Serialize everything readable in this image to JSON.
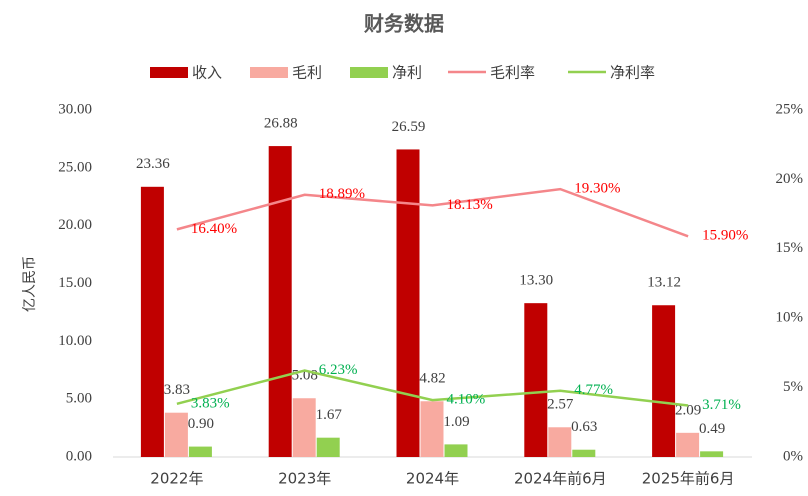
{
  "chart_data": {
    "type": "bar-line",
    "title": "财务数据",
    "y_label": "亿人民币",
    "categories": [
      "2022年",
      "2023年",
      "2024年",
      "2024年前6月",
      "2025年前6月"
    ],
    "series": [
      {
        "name": "收入",
        "kind": "bar",
        "color": "#c00000",
        "values": [
          23.36,
          26.88,
          26.59,
          13.3,
          13.12
        ],
        "value_labels": [
          "23.36",
          "26.88",
          "26.59",
          "13.30",
          "13.12"
        ]
      },
      {
        "name": "毛利",
        "kind": "bar",
        "color": "#f8aaa0",
        "values": [
          3.83,
          5.08,
          4.82,
          2.57,
          2.09
        ],
        "value_labels": [
          "3.83",
          "5.08",
          "4.82",
          "2.57",
          "2.09"
        ]
      },
      {
        "name": "净利",
        "kind": "bar",
        "color": "#92d050",
        "values": [
          0.9,
          1.67,
          1.09,
          0.63,
          0.49
        ],
        "value_labels": [
          "0.90",
          "1.67",
          "1.09",
          "0.63",
          "0.49"
        ]
      },
      {
        "name": "毛利率",
        "kind": "line",
        "axis": "y2",
        "color": "#f4868a",
        "label_color": "#ff0000",
        "values": [
          16.4,
          18.89,
          18.13,
          19.3,
          15.9
        ],
        "value_labels": [
          "16.40%",
          "18.89%",
          "18.13%",
          "19.30%",
          "15.90%"
        ]
      },
      {
        "name": "净利率",
        "kind": "line",
        "axis": "y2",
        "color": "#92d050",
        "label_color": "#00b050",
        "values": [
          3.83,
          6.23,
          4.1,
          4.77,
          3.71
        ],
        "value_labels": [
          "3.83%",
          "6.23%",
          "4.10%",
          "4.77%",
          "3.71%"
        ]
      }
    ],
    "ylim": [
      0,
      30
    ],
    "yticks": [
      {
        "value": 0,
        "label": "0.00"
      },
      {
        "value": 5,
        "label": "5.00"
      },
      {
        "value": 10,
        "label": "10.00"
      },
      {
        "value": 15,
        "label": "15.00"
      },
      {
        "value": 20,
        "label": "20.00"
      },
      {
        "value": 25,
        "label": "25.00"
      },
      {
        "value": 30,
        "label": "30.00"
      }
    ],
    "y2lim": [
      0,
      25
    ],
    "y2ticks": [
      {
        "value": 0,
        "label": "0%"
      },
      {
        "value": 5,
        "label": "5%"
      },
      {
        "value": 10,
        "label": "10%"
      },
      {
        "value": 15,
        "label": "15%"
      },
      {
        "value": 20,
        "label": "20%"
      },
      {
        "value": 25,
        "label": "25%"
      }
    ]
  }
}
